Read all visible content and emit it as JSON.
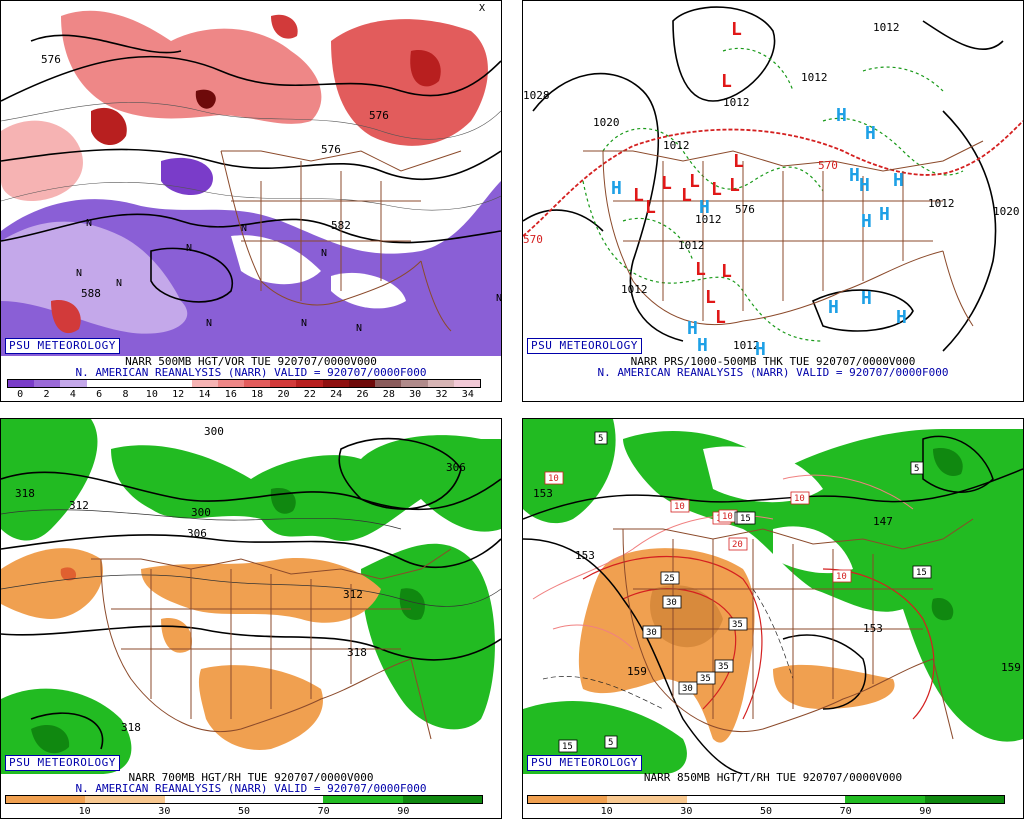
{
  "panels": [
    {
      "id": "vor500",
      "credit": "PSU METEOROLOGY",
      "caption_line1": "NARR 500MB HGT/VOR TUE 920707/0000V000",
      "caption_line2": "N. AMERICAN REANALYSIS (NARR) VALID = 920707/0000F000",
      "contour_labels": [
        "576",
        "576",
        "582",
        "588",
        "576"
      ],
      "markers": [
        "N",
        "N",
        "N",
        "N",
        "N",
        "N",
        "N",
        "N",
        "N",
        "N",
        "X"
      ],
      "legend": {
        "ticks": [
          "0",
          "2",
          "4",
          "6",
          "8",
          "10",
          "12",
          "14",
          "16",
          "18",
          "20",
          "22",
          "24",
          "26",
          "28",
          "30",
          "32",
          "34"
        ],
        "colors": [
          "#7a3cc9",
          "#9b6ad8",
          "#c4a8ea",
          "#ffffff",
          "#ffffff",
          "#ffffff",
          "#ffffff",
          "#f6b3b3",
          "#ee8787",
          "#e25c5c",
          "#d23a3a",
          "#b81f1f",
          "#8f1010",
          "#6e0a0a",
          "#8a5a5a",
          "#b08a8a",
          "#d7b4b4",
          "#f2c9d6"
        ]
      }
    },
    {
      "id": "prs1000",
      "credit": "PSU METEOROLOGY",
      "caption_line1": "NARR PRS/1000-500MB THK TUE 920707/0000V000",
      "caption_line2": "N. AMERICAN REANALYSIS (NARR) VALID = 920707/0000F000",
      "isobar_labels": [
        "1012",
        "1012",
        "1020",
        "1012",
        "1012",
        "1012",
        "1028",
        "1020",
        "1012",
        "1012",
        "1012",
        "1012"
      ],
      "thickness_labels": [
        "570",
        "570",
        "576"
      ],
      "highs": [
        "H",
        "H",
        "H",
        "H",
        "H",
        "H",
        "H",
        "H",
        "H",
        "H",
        "H",
        "H",
        "H",
        "H",
        "H"
      ],
      "lows": [
        "L",
        "L",
        "L",
        "L",
        "L",
        "L",
        "L",
        "L",
        "L",
        "L",
        "L",
        "L",
        "L",
        "L"
      ]
    },
    {
      "id": "rh700",
      "credit": "PSU METEOROLOGY",
      "caption_line1": "NARR 700MB HGT/RH TUE 920707/0000V000",
      "caption_line2": "N. AMERICAN REANALYSIS (NARR) VALID = 920707/0000F000",
      "contour_labels": [
        "318",
        "312",
        "300",
        "306",
        "312",
        "318",
        "318",
        "306",
        "300"
      ],
      "legend": {
        "ticks": [
          "10",
          "30",
          "50",
          "70",
          "90"
        ],
        "colors": [
          "#f0a050",
          "#f8c890",
          "#ffffff",
          "#ffffff",
          "#22bb22",
          "#108810"
        ]
      }
    },
    {
      "id": "rh850",
      "credit": "PSU METEOROLOGY",
      "caption_line1": "NARR 850MB HGT/T/RH TUE 920707/0000V000",
      "contour_labels": [
        "153",
        "159",
        "147",
        "153",
        "159",
        "153"
      ],
      "temp_labels": [
        "5",
        "5",
        "10",
        "10",
        "10",
        "10",
        "10",
        "10",
        "15",
        "15",
        "15",
        "20",
        "25",
        "30",
        "30",
        "30",
        "35",
        "35",
        "35",
        "5",
        "15"
      ],
      "legend": {
        "ticks": [
          "10",
          "30",
          "50",
          "70",
          "90"
        ],
        "colors": [
          "#f0a050",
          "#f8c890",
          "#ffffff",
          "#ffffff",
          "#22bb22",
          "#108810"
        ]
      }
    }
  ]
}
